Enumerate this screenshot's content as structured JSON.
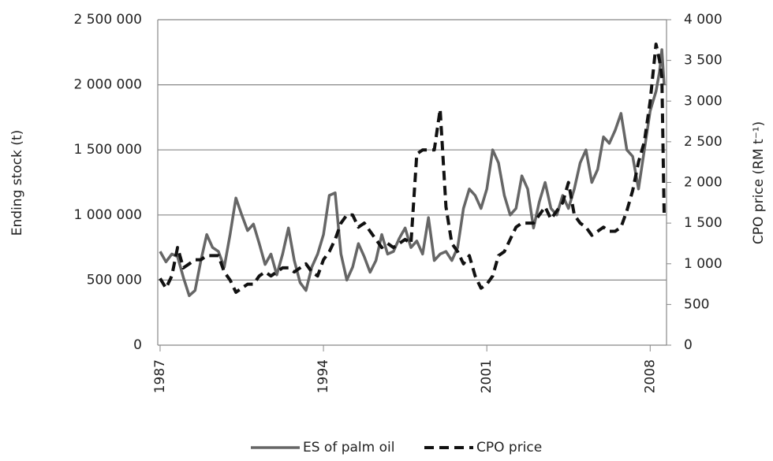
{
  "chart_data": {
    "type": "line",
    "x": [
      1987,
      1987.25,
      1987.5,
      1987.75,
      1988,
      1988.25,
      1988.5,
      1988.75,
      1989,
      1989.25,
      1989.5,
      1989.75,
      1990,
      1990.25,
      1990.5,
      1990.75,
      1991,
      1991.25,
      1991.5,
      1991.75,
      1992,
      1992.25,
      1992.5,
      1992.75,
      1993,
      1993.25,
      1993.5,
      1993.75,
      1994,
      1994.25,
      1994.5,
      1994.75,
      1995,
      1995.25,
      1995.5,
      1995.75,
      1996,
      1996.25,
      1996.5,
      1996.75,
      1997,
      1997.25,
      1997.5,
      1997.75,
      1998,
      1998.25,
      1998.5,
      1998.75,
      1999,
      1999.25,
      1999.5,
      1999.75,
      2000,
      2000.25,
      2000.5,
      2000.75,
      2001,
      2001.25,
      2001.5,
      2001.75,
      2002,
      2002.25,
      2002.5,
      2002.75,
      2003,
      2003.25,
      2003.5,
      2003.75,
      2004,
      2004.25,
      2004.5,
      2004.75,
      2005,
      2005.25,
      2005.5,
      2005.75,
      2006,
      2006.25,
      2006.5,
      2006.75,
      2007,
      2007.25,
      2007.5,
      2007.75,
      2008,
      2008.25,
      2008.4,
      2008.5,
      2008.6
    ],
    "series": [
      {
        "name": "ES of palm oil",
        "color": "#666666",
        "line_style": "solid",
        "axis": "y",
        "values": [
          720000,
          640000,
          700000,
          680000,
          520000,
          380000,
          420000,
          650000,
          850000,
          750000,
          720000,
          600000,
          850000,
          1130000,
          1000000,
          880000,
          930000,
          780000,
          620000,
          700000,
          540000,
          700000,
          900000,
          650000,
          480000,
          420000,
          600000,
          700000,
          850000,
          1150000,
          1170000,
          700000,
          500000,
          600000,
          780000,
          680000,
          560000,
          650000,
          850000,
          700000,
          720000,
          820000,
          900000,
          750000,
          800000,
          700000,
          980000,
          650000,
          700000,
          720000,
          650000,
          750000,
          1050000,
          1200000,
          1150000,
          1050000,
          1200000,
          1500000,
          1400000,
          1150000,
          1000000,
          1050000,
          1300000,
          1200000,
          900000,
          1100000,
          1250000,
          1050000,
          1000000,
          1150000,
          1050000,
          1200000,
          1400000,
          1500000,
          1250000,
          1350000,
          1600000,
          1550000,
          1650000,
          1780000,
          1500000,
          1450000,
          1200000,
          1500000,
          1800000,
          1950000,
          2100000,
          2270000,
          2000000
        ]
      },
      {
        "name": "CPO price",
        "color": "#111111",
        "line_style": "dashed",
        "axis": "y2",
        "values": [
          820,
          700,
          850,
          1200,
          950,
          1000,
          1050,
          1050,
          1100,
          1100,
          1100,
          900,
          800,
          650,
          700,
          750,
          750,
          850,
          900,
          850,
          900,
          950,
          950,
          900,
          950,
          1000,
          900,
          850,
          1050,
          1150,
          1300,
          1500,
          1600,
          1600,
          1450,
          1500,
          1400,
          1300,
          1200,
          1250,
          1200,
          1250,
          1300,
          1250,
          2350,
          2400,
          2400,
          2400,
          2900,
          1700,
          1250,
          1150,
          1000,
          1100,
          850,
          700,
          750,
          850,
          1100,
          1150,
          1300,
          1450,
          1500,
          1500,
          1500,
          1600,
          1700,
          1550,
          1650,
          1750,
          2000,
          1600,
          1500,
          1450,
          1350,
          1400,
          1450,
          1400,
          1400,
          1450,
          1650,
          1900,
          2250,
          2500,
          3000,
          3700,
          3500,
          3300,
          1600
        ]
      }
    ],
    "y_label": "Ending stock (t)",
    "y2_label": "CPO price (RM t⁻¹)",
    "xlim": [
      1986.9,
      2008.7
    ],
    "xticks": [
      1987,
      1994,
      2001,
      2008
    ],
    "ylim": [
      0,
      2500000
    ],
    "yticks": [
      0,
      {
        "value": 500000,
        "label": "500 000"
      },
      {
        "value": 1000000,
        "label": "1 000 000"
      },
      {
        "value": 1500000,
        "label": "1 500 000"
      },
      {
        "value": 2000000,
        "label": "2 000 000"
      },
      {
        "value": 2500000,
        "label": "2 500 000"
      }
    ],
    "y2lim": [
      0,
      4000
    ],
    "y2ticks": [
      0,
      500,
      {
        "value": 1000,
        "label": "1 000"
      },
      {
        "value": 1500,
        "label": "1 500"
      },
      {
        "value": 2000,
        "label": "2 000"
      },
      {
        "value": 2500,
        "label": "2 500"
      },
      {
        "value": 3000,
        "label": "3 000"
      },
      {
        "value": 3500,
        "label": "3 500"
      },
      {
        "value": 4000,
        "label": "4 000"
      }
    ],
    "grid": true,
    "legend": "bottom"
  }
}
